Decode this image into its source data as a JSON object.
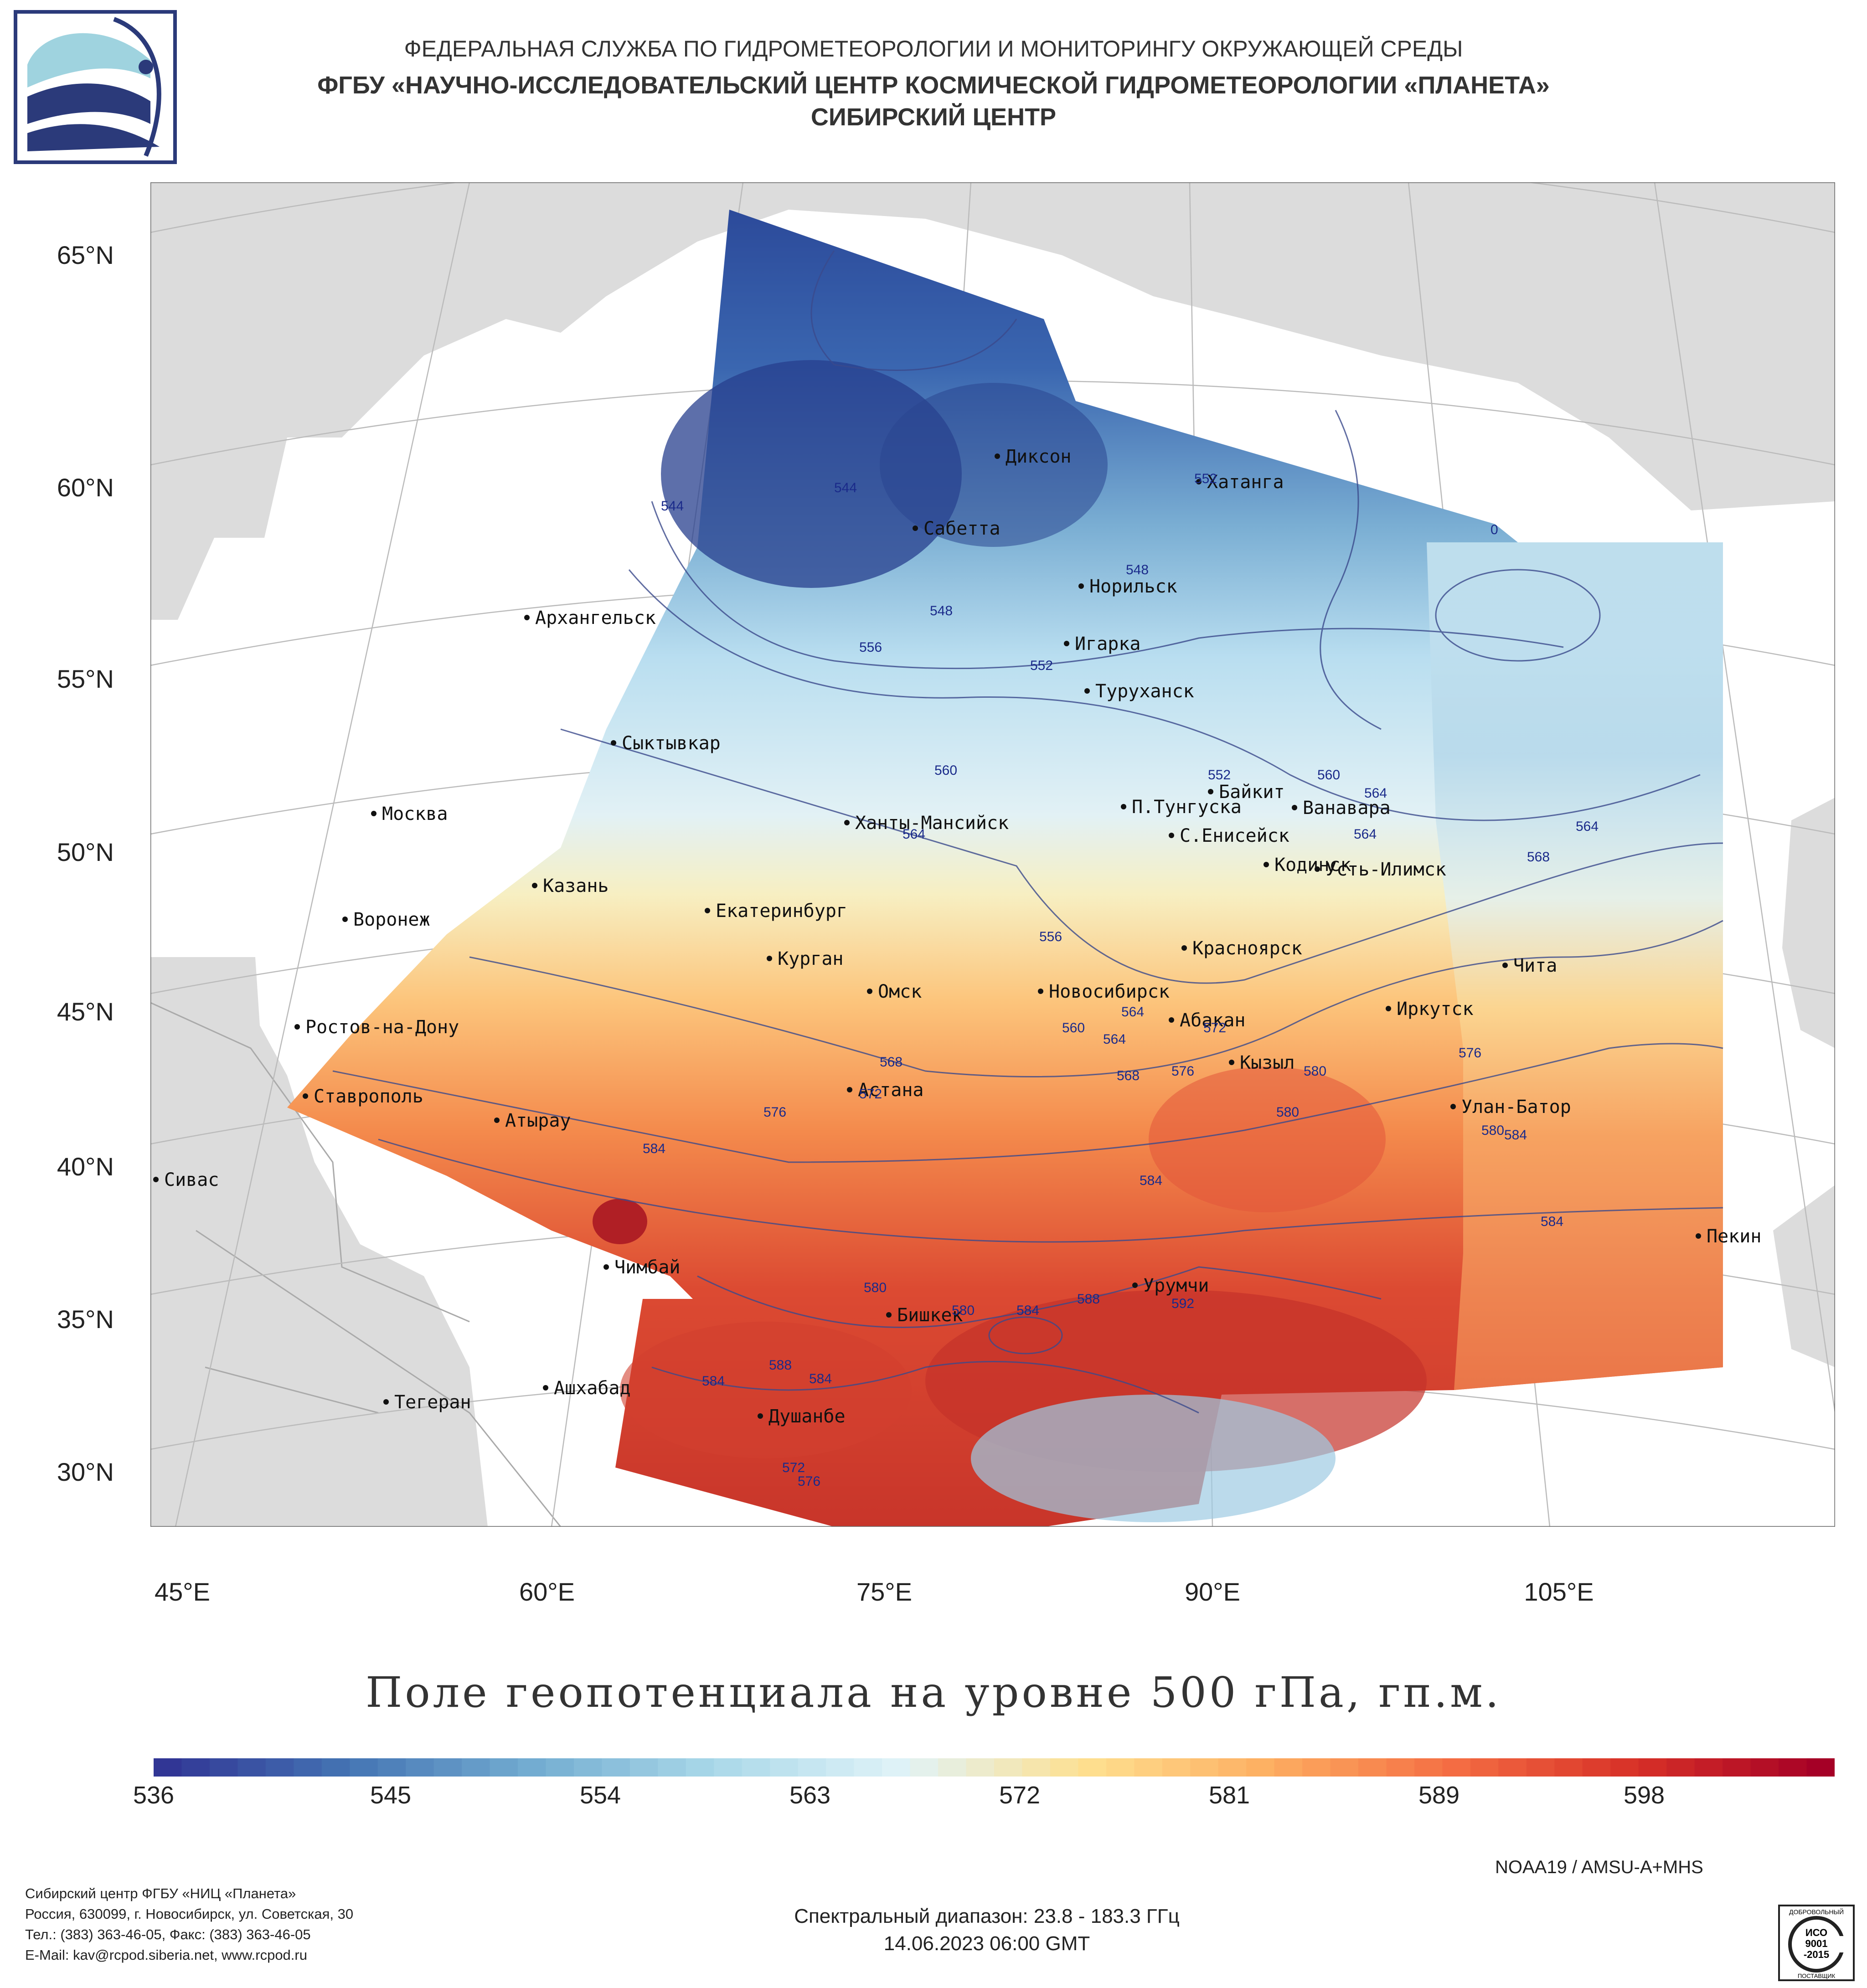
{
  "header": {
    "line1": "ФЕДЕРАЛЬНАЯ СЛУЖБА ПО ГИДРОМЕТЕОРОЛОГИИ И МОНИТОРИНГУ ОКРУЖАЮЩЕЙ СРЕДЫ",
    "line2": "ФГБУ «НАУЧНО-ИССЛЕДОВАТЕЛЬСКИЙ ЦЕНТР КОСМИЧЕСКОЙ ГИДРОМЕТЕОРОЛОГИИ «ПЛАНЕТА»",
    "line3": "СИБИРСКИЙ ЦЕНТР"
  },
  "map": {
    "lat_labels": [
      "65°N",
      "60°N",
      "55°N",
      "50°N",
      "45°N",
      "40°N",
      "35°N",
      "30°N"
    ],
    "lon_labels": [
      "45°E",
      "60°E",
      "75°E",
      "90°E",
      "105°E"
    ],
    "cities": [
      "Диксон",
      "Хатанга",
      "Сабетта",
      "Норильск",
      "Архангельск",
      "Игарка",
      "Туруханск",
      "Сыктывкар",
      "Байкит",
      "Москва",
      "П.Тунгуска",
      "Ванавара",
      "Ханты-Мансийск",
      "С.Енисейск",
      "Кодинск",
      "Усть-Илимск",
      "Казань",
      "Екатеринбург",
      "Воронеж",
      "Красноярск",
      "Курган",
      "Чита",
      "Омск",
      "Новосибирск",
      "Иркутск",
      "Абакан",
      "Ростов-на-Дону",
      "Кызыл",
      "Астана",
      "Ставрополь",
      "Улан-Батор",
      "Атырау",
      "Сивас",
      "Пекин",
      "Чимбай",
      "Урумчи",
      "Бишкек",
      "Ашхабад",
      "Тегеран",
      "Душанбе"
    ],
    "contour_labels": [
      "544",
      "544",
      "552",
      "548",
      "548",
      "556",
      "552",
      "560",
      "552",
      "560",
      "564",
      "564",
      "568",
      "564",
      "556",
      "560",
      "564",
      "568",
      "572",
      "576",
      "568",
      "572",
      "576",
      "576",
      "580",
      "580",
      "584",
      "584",
      "580",
      "584",
      "588",
      "592",
      "580",
      "584",
      "588",
      "584",
      "572",
      "576",
      "584",
      "584",
      "580",
      "0",
      "564",
      "564"
    ],
    "title": "Поле геопотенциала на уровне 500 гПа, гп.м."
  },
  "colorbar": {
    "tick_labels": [
      "536",
      "545",
      "554",
      "563",
      "572",
      "581",
      "589",
      "598"
    ],
    "colors": [
      "#313695",
      "#4575b4",
      "#74add1",
      "#abd9e9",
      "#e0f3f8",
      "#fee090",
      "#fdae61",
      "#f46d43",
      "#d73027",
      "#a50026"
    ]
  },
  "footer": {
    "org_line1": "Сибирский центр ФГБУ «НИЦ «Планета»",
    "org_line2": "Россия, 630099, г. Новосибирск, ул. Советская, 30",
    "org_line3": "Тел.: (383) 363-46-05, Факс: (383) 363-46-05",
    "org_line4": "E-Mail: kav@rcpod.siberia.net, www.rcpod.ru",
    "sensor": "NOAA19 / AMSU-A+MHS",
    "spectral": "Спектральный диапазон: 23.8 - 183.3 ГГц",
    "datetime": "14.06.2023 06:00 GMT",
    "iso_top": "ДОБРОВОЛЬНЫЙ",
    "iso_mid1": "ИСО",
    "iso_mid2": "9001",
    "iso_mid3": "-2015",
    "iso_bottom": "ПОСТАВЩИК"
  }
}
